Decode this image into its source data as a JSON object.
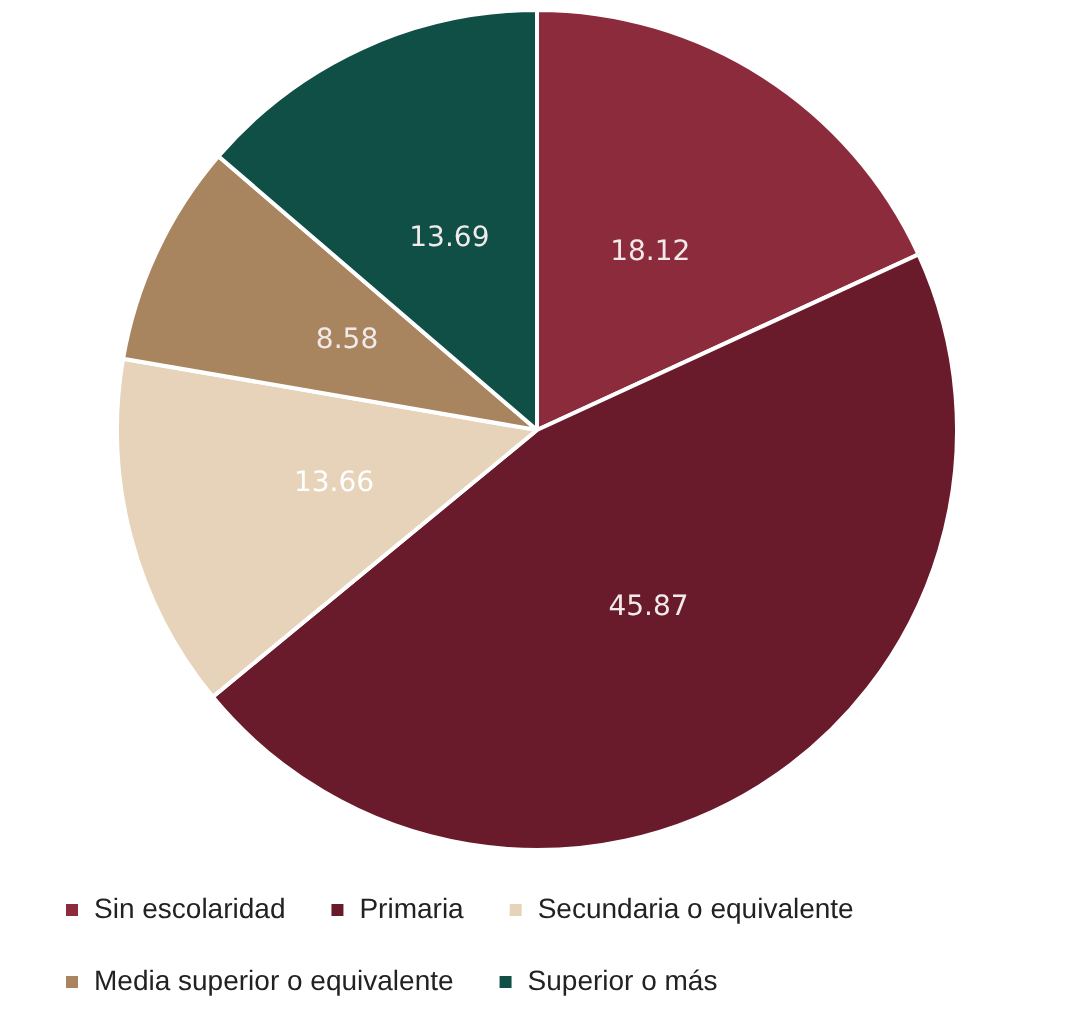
{
  "chart_data": {
    "type": "pie",
    "categories": [
      "Sin escolaridad",
      "Primaria",
      "Secundaria o equivalente",
      "Media superior o equivalente",
      "Superior o más"
    ],
    "values": [
      18.12,
      45.87,
      13.66,
      8.58,
      13.69
    ],
    "colors": [
      "#8c2b3c",
      "#6a1b2b",
      "#e6d3ba",
      "#a9855f",
      "#0f4f45"
    ],
    "data_labels": true,
    "legend": "bottom"
  }
}
